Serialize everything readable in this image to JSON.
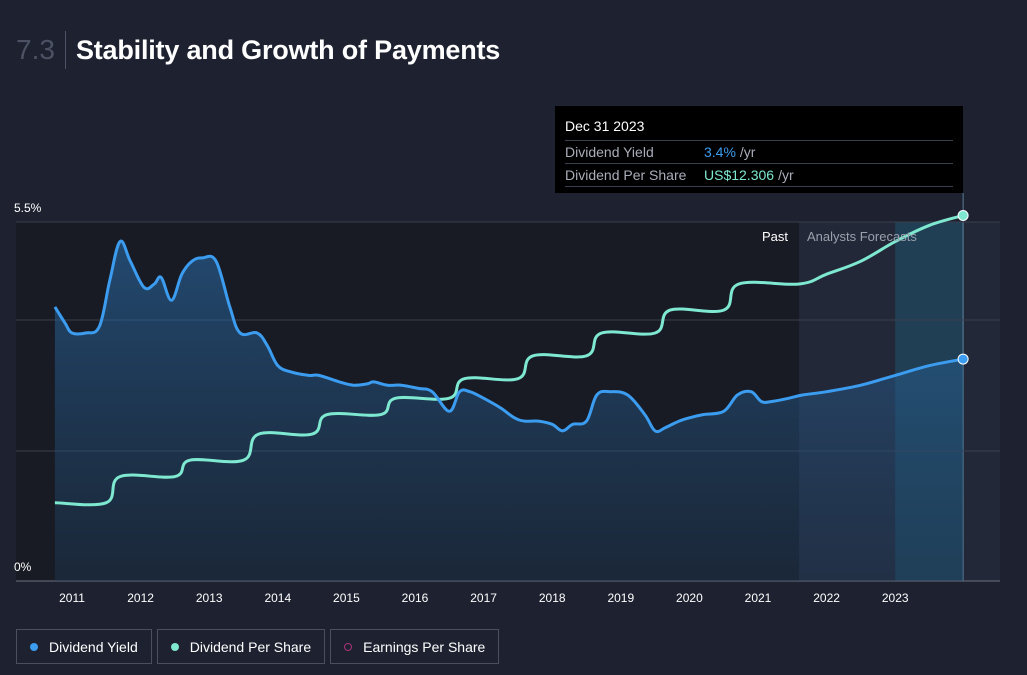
{
  "header": {
    "section_number": "7.3",
    "title": "Stability and Growth of Payments"
  },
  "tooltip": {
    "date": "Dec 31 2023",
    "yield_label": "Dividend Yield",
    "yield_value": "3.4%",
    "yield_unit": "/yr",
    "dps_label": "Dividend Per Share",
    "dps_value": "US$12.306",
    "dps_unit": "/yr"
  },
  "regions": {
    "past_label": "Past",
    "forecast_label": "Analysts Forecasts"
  },
  "legend": {
    "yield_label": "Dividend Yield",
    "dps_label": "Dividend Per Share",
    "eps_label": "Earnings Per Share"
  },
  "colors": {
    "yield": "#3b9cf0",
    "dps": "#7ee8d0",
    "eps": "#a8337a",
    "background": "#1e2230"
  },
  "chart_data": {
    "type": "line",
    "title": "Stability and Growth of Payments",
    "x_ticks": [
      "2011",
      "2012",
      "2013",
      "2014",
      "2015",
      "2016",
      "2017",
      "2018",
      "2019",
      "2020",
      "2021",
      "2022",
      "2023"
    ],
    "y_ticks": [
      "0%",
      "5.5%"
    ],
    "ylim": [
      0,
      5.5
    ],
    "xlim": [
      2010.8,
      2024.5
    ],
    "forecast_start": 2021.6,
    "grid": true,
    "legend_position": "bottom-left",
    "series": [
      {
        "name": "Dividend Yield",
        "unit": "%",
        "values": [
          [
            2010.75,
            4.2
          ],
          [
            2010.9,
            3.95
          ],
          [
            2011.0,
            3.8
          ],
          [
            2011.2,
            3.8
          ],
          [
            2011.4,
            3.9
          ],
          [
            2011.55,
            4.6
          ],
          [
            2011.7,
            5.2
          ],
          [
            2011.85,
            4.9
          ],
          [
            2012.05,
            4.5
          ],
          [
            2012.2,
            4.55
          ],
          [
            2012.3,
            4.65
          ],
          [
            2012.45,
            4.3
          ],
          [
            2012.6,
            4.7
          ],
          [
            2012.75,
            4.9
          ],
          [
            2012.9,
            4.95
          ],
          [
            2013.1,
            4.9
          ],
          [
            2013.3,
            4.2
          ],
          [
            2013.45,
            3.8
          ],
          [
            2013.7,
            3.8
          ],
          [
            2013.85,
            3.6
          ],
          [
            2014.0,
            3.3
          ],
          [
            2014.2,
            3.2
          ],
          [
            2014.45,
            3.15
          ],
          [
            2014.6,
            3.15
          ],
          [
            2014.9,
            3.05
          ],
          [
            2015.1,
            3.0
          ],
          [
            2015.3,
            3.02
          ],
          [
            2015.4,
            3.05
          ],
          [
            2015.6,
            3.0
          ],
          [
            2015.8,
            3.0
          ],
          [
            2016.05,
            2.95
          ],
          [
            2016.25,
            2.9
          ],
          [
            2016.5,
            2.6
          ],
          [
            2016.65,
            2.9
          ],
          [
            2016.8,
            2.9
          ],
          [
            2017.0,
            2.8
          ],
          [
            2017.25,
            2.65
          ],
          [
            2017.45,
            2.5
          ],
          [
            2017.6,
            2.45
          ],
          [
            2017.8,
            2.45
          ],
          [
            2018.0,
            2.4
          ],
          [
            2018.15,
            2.3
          ],
          [
            2018.3,
            2.4
          ],
          [
            2018.5,
            2.45
          ],
          [
            2018.65,
            2.85
          ],
          [
            2018.85,
            2.9
          ],
          [
            2019.1,
            2.85
          ],
          [
            2019.35,
            2.55
          ],
          [
            2019.5,
            2.3
          ],
          [
            2019.65,
            2.35
          ],
          [
            2019.85,
            2.45
          ],
          [
            2020.0,
            2.5
          ],
          [
            2020.2,
            2.55
          ],
          [
            2020.5,
            2.6
          ],
          [
            2020.7,
            2.85
          ],
          [
            2020.9,
            2.9
          ],
          [
            2021.05,
            2.75
          ],
          [
            2021.2,
            2.75
          ],
          [
            2021.45,
            2.8
          ],
          [
            2021.65,
            2.85
          ],
          [
            2022.0,
            2.9
          ],
          [
            2022.5,
            3.0
          ],
          [
            2023.0,
            3.15
          ],
          [
            2023.5,
            3.3
          ],
          [
            2023.99,
            3.4
          ]
        ]
      },
      {
        "name": "Dividend Per Share",
        "unit": "US$",
        "values": [
          [
            2010.75,
            1.2
          ],
          [
            2011.5,
            1.2
          ],
          [
            2011.7,
            1.6
          ],
          [
            2012.5,
            1.6
          ],
          [
            2012.72,
            1.85
          ],
          [
            2013.5,
            1.85
          ],
          [
            2013.72,
            2.25
          ],
          [
            2014.5,
            2.25
          ],
          [
            2014.72,
            2.55
          ],
          [
            2015.5,
            2.55
          ],
          [
            2015.72,
            2.8
          ],
          [
            2016.5,
            2.8
          ],
          [
            2016.72,
            3.1
          ],
          [
            2017.5,
            3.1
          ],
          [
            2017.72,
            3.45
          ],
          [
            2018.5,
            3.45
          ],
          [
            2018.72,
            3.8
          ],
          [
            2019.5,
            3.8
          ],
          [
            2019.72,
            4.15
          ],
          [
            2020.5,
            4.15
          ],
          [
            2020.72,
            4.55
          ],
          [
            2021.6,
            4.55
          ],
          [
            2022.0,
            4.7
          ],
          [
            2022.5,
            4.9
          ],
          [
            2023.0,
            5.2
          ],
          [
            2023.5,
            5.45
          ],
          [
            2023.99,
            5.6
          ]
        ]
      }
    ]
  }
}
